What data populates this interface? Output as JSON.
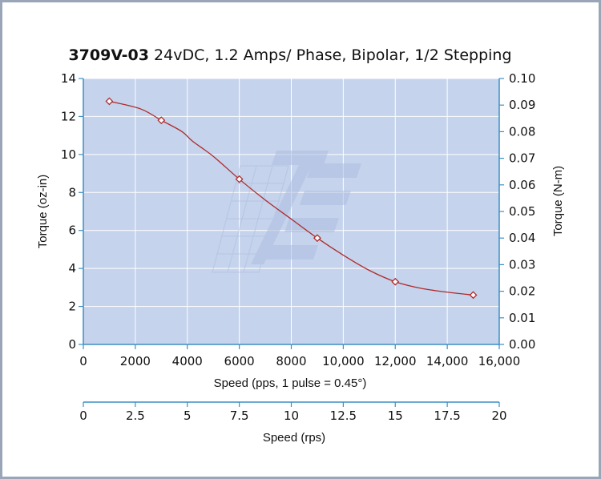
{
  "chart_data": {
    "type": "line",
    "title_bold": "3709V-03",
    "title_rest": " 24vDC, 1.2 Amps/ Phase, Bipolar, 1/2 Stepping",
    "xlabel": "Speed (pps, 1 pulse = 0.45°)",
    "ylabel_left": "Torque (oz-in)",
    "ylabel_right": "Torque (N-m)",
    "xlabel_secondary": "Speed (rps)",
    "xlim": [
      0,
      16000
    ],
    "ylim": [
      0,
      14
    ],
    "ylim_right": [
      0,
      0.1
    ],
    "secondary_xlim": [
      0,
      20
    ],
    "x_ticks": [
      "0",
      "2000",
      "4000",
      "6000",
      "8000",
      "10,000",
      "12,000",
      "14,000",
      "16,000"
    ],
    "y_ticks": [
      "0",
      "2",
      "4",
      "6",
      "8",
      "10",
      "12",
      "14"
    ],
    "y_right_ticks": [
      "0.00",
      "0.01",
      "0.02",
      "0.03",
      "0.04",
      "0.05",
      "0.06",
      "0.07",
      "0.08",
      "0.09",
      "0.10"
    ],
    "secondary_x_ticks": [
      "0",
      "2.5",
      "5",
      "7.5",
      "10",
      "12.5",
      "15",
      "17.5",
      "20"
    ],
    "grid": true,
    "plot_background": "#c5d3ec",
    "grid_color": "#ffffff",
    "axis_color": "#3b8fc4",
    "series": [
      {
        "color": "#b02a2a",
        "markers": [
          {
            "x": 1000,
            "y": 12.8
          },
          {
            "x": 3000,
            "y": 11.8
          },
          {
            "x": 6000,
            "y": 8.7
          },
          {
            "x": 9000,
            "y": 5.6
          },
          {
            "x": 12000,
            "y": 3.3
          },
          {
            "x": 15000,
            "y": 2.6
          }
        ],
        "curve": [
          {
            "x": 1000,
            "y": 12.8
          },
          {
            "x": 2200,
            "y": 12.4
          },
          {
            "x": 3000,
            "y": 11.8
          },
          {
            "x": 3800,
            "y": 11.2
          },
          {
            "x": 4200,
            "y": 10.7
          },
          {
            "x": 5000,
            "y": 9.9
          },
          {
            "x": 6000,
            "y": 8.7
          },
          {
            "x": 7000,
            "y": 7.6
          },
          {
            "x": 8000,
            "y": 6.6
          },
          {
            "x": 9000,
            "y": 5.6
          },
          {
            "x": 10000,
            "y": 4.7
          },
          {
            "x": 11000,
            "y": 3.9
          },
          {
            "x": 12000,
            "y": 3.3
          },
          {
            "x": 13000,
            "y": 2.95
          },
          {
            "x": 14000,
            "y": 2.75
          },
          {
            "x": 15000,
            "y": 2.6
          }
        ]
      }
    ]
  }
}
